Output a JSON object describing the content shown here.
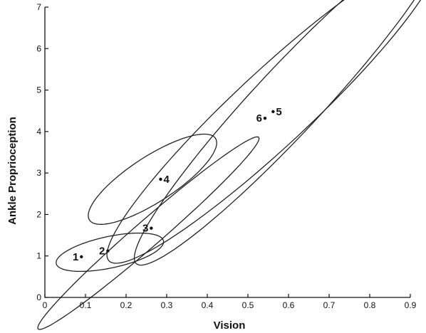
{
  "chart_data": {
    "type": "scatter",
    "xlabel": "Vision",
    "ylabel": "Ankle Proprioception",
    "xlim": [
      0,
      0.9
    ],
    "ylim": [
      0,
      7
    ],
    "xticks": [
      0,
      0.1,
      0.2,
      0.3,
      0.4,
      0.5,
      0.6,
      0.7,
      0.8,
      0.9
    ],
    "xtick_labels": [
      "0",
      "0.1",
      "0.2",
      "0.3",
      "0.4",
      "0.5",
      "0.6",
      "0.7",
      "0.8",
      "0.9"
    ],
    "yticks": [
      0,
      1,
      2,
      3,
      4,
      5,
      6,
      7
    ],
    "ytick_labels": [
      "0",
      "1",
      "2",
      "3",
      "4",
      "5",
      "6",
      "7"
    ],
    "grid": false,
    "points": [
      {
        "label": "1",
        "x": 0.09,
        "y": 0.98
      },
      {
        "label": "2",
        "x": 0.155,
        "y": 1.12
      },
      {
        "label": "3",
        "x": 0.262,
        "y": 1.67
      },
      {
        "label": "4",
        "x": 0.285,
        "y": 2.85
      },
      {
        "label": "5",
        "x": 0.562,
        "y": 4.48
      },
      {
        "label": "6",
        "x": 0.542,
        "y": 4.32
      }
    ],
    "ellipses": [
      {
        "cx": 0.16,
        "cy": 1.09,
        "rx": 0.135,
        "ry": 0.38,
        "angle_deg": 12
      },
      {
        "cx": 0.255,
        "cy": 1.55,
        "rx": 0.36,
        "ry": 0.32,
        "angle_deg": 41
      },
      {
        "cx": 0.265,
        "cy": 2.85,
        "rx": 0.185,
        "ry": 0.55,
        "angle_deg": 33
      },
      {
        "cx": 0.56,
        "cy": 4.55,
        "rx": 0.55,
        "ry": 0.9,
        "angle_deg": 43
      },
      {
        "cx": 0.6,
        "cy": 4.75,
        "rx": 0.55,
        "ry": 0.8,
        "angle_deg": 47
      }
    ]
  }
}
